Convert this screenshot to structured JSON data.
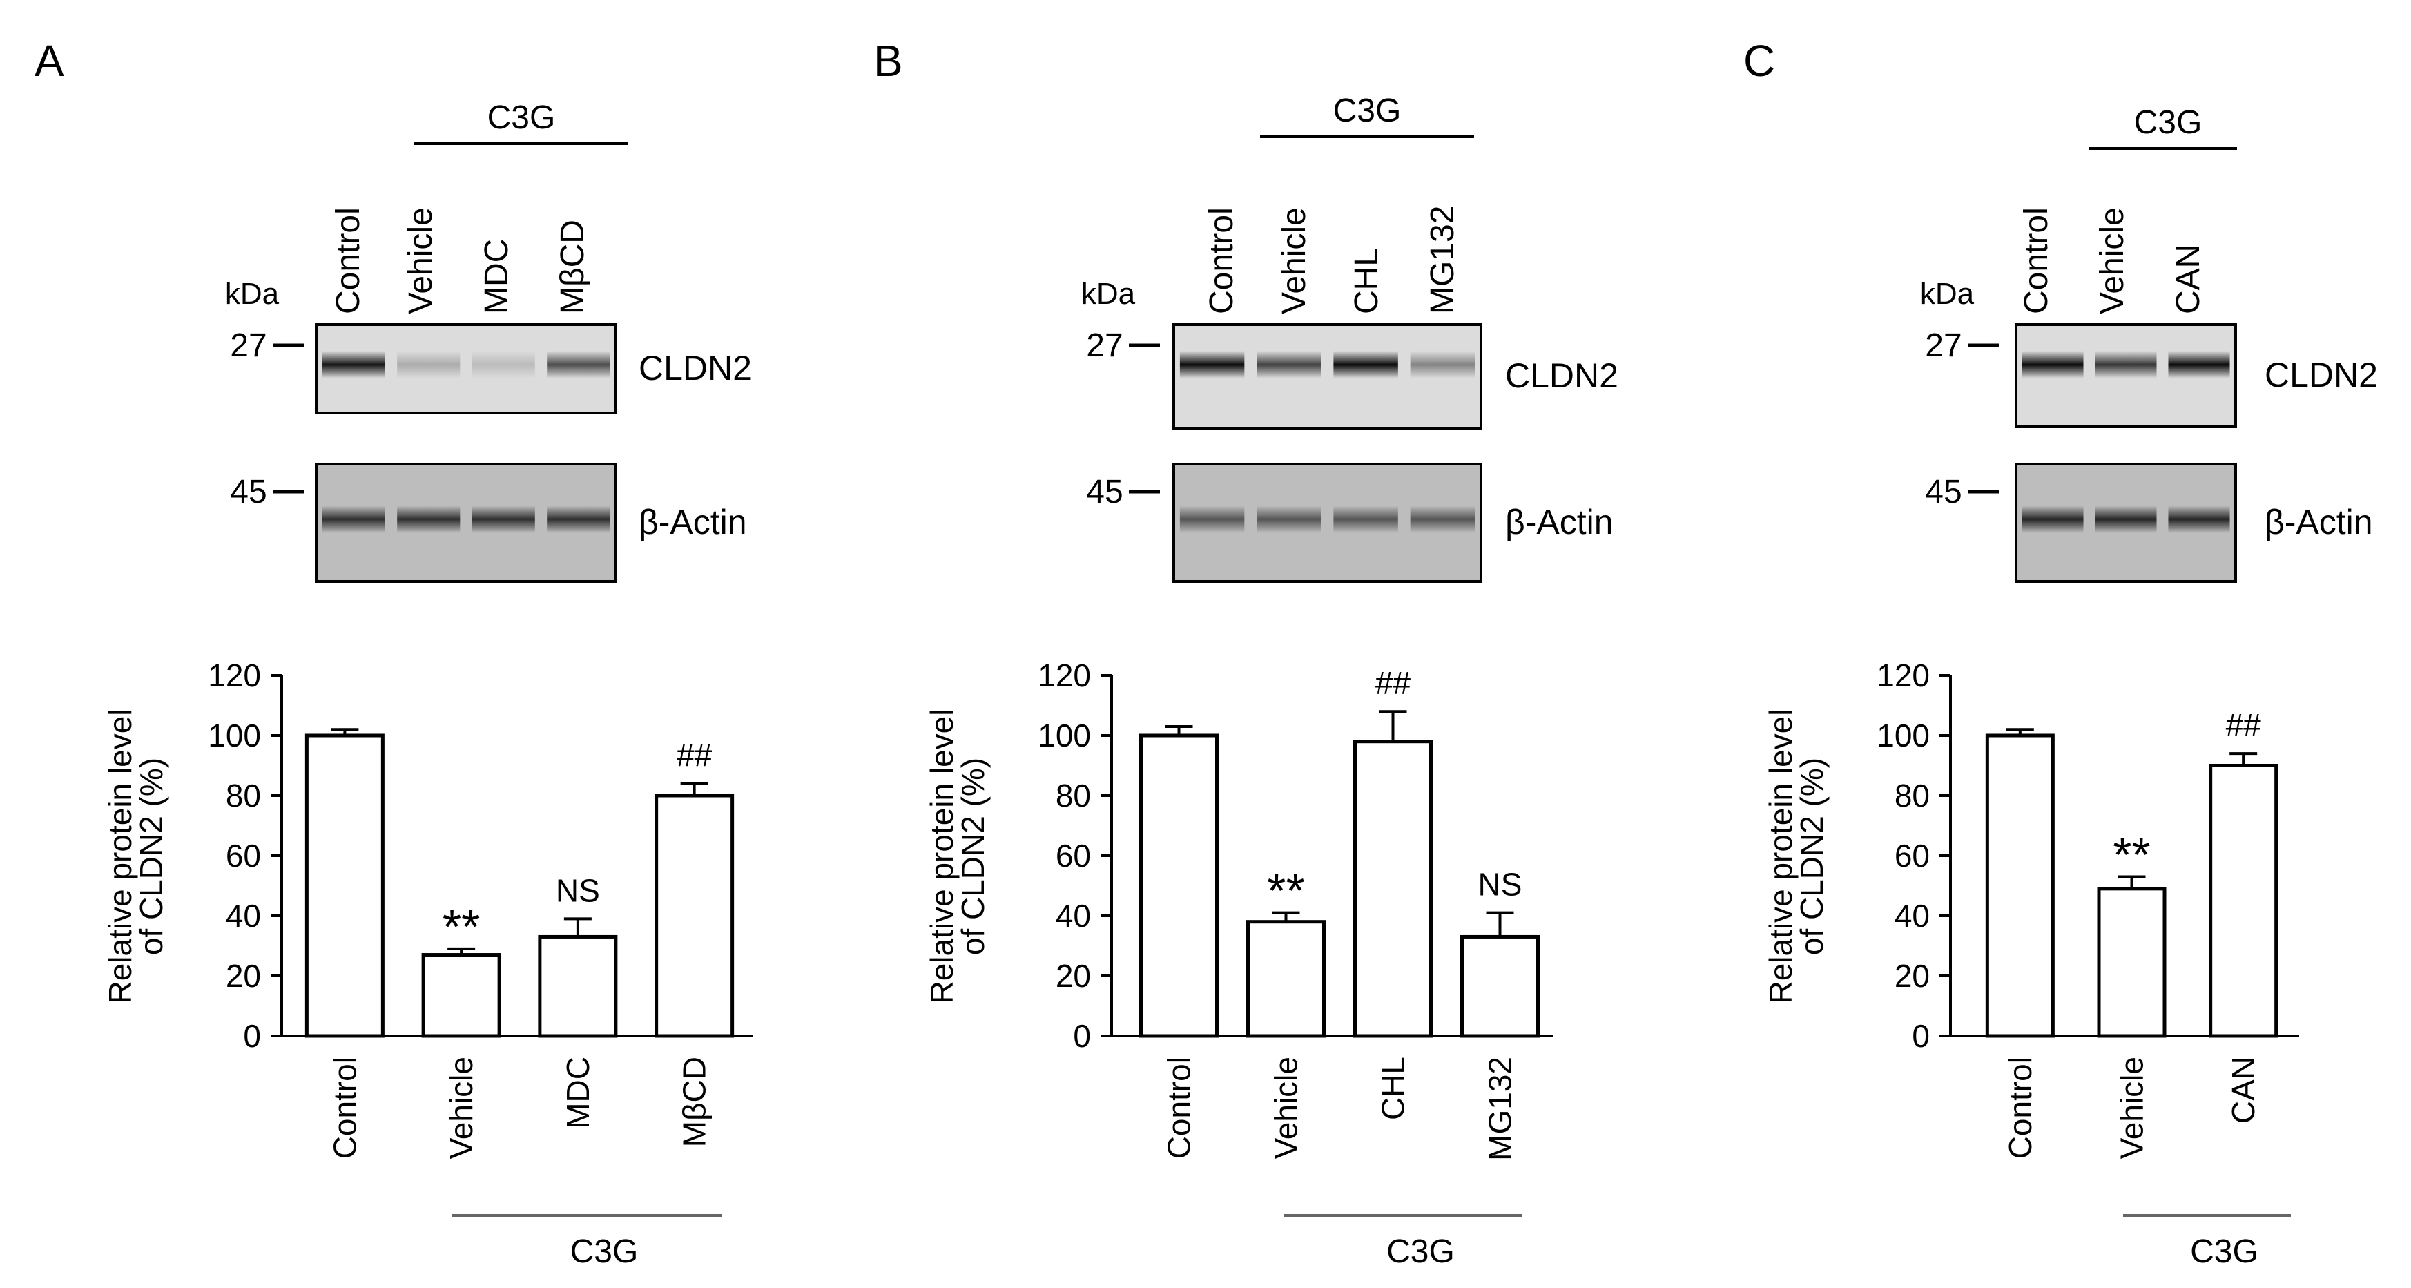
{
  "panels": [
    {
      "letter": "A",
      "treatment_label": "C3G",
      "lanes": [
        "Control",
        "Vehicle",
        "MDC",
        "MβCD"
      ],
      "kda_label": "kDa",
      "markers": [
        "27",
        "45"
      ],
      "blots": [
        {
          "label": "CLDN2",
          "band_intensity": [
            0.9,
            0.22,
            0.15,
            0.65
          ]
        },
        {
          "label": "β-Actin",
          "band_intensity": [
            0.75,
            0.75,
            0.75,
            0.75
          ]
        }
      ]
    },
    {
      "letter": "B",
      "treatment_label": "C3G",
      "lanes": [
        "Control",
        "Vehicle",
        "CHL",
        "MG132"
      ],
      "kda_label": "kDa",
      "markers": [
        "27",
        "45"
      ],
      "blots": [
        {
          "label": "CLDN2",
          "band_intensity": [
            0.95,
            0.7,
            0.95,
            0.4
          ]
        },
        {
          "label": "β-Actin",
          "band_intensity": [
            0.55,
            0.55,
            0.55,
            0.55
          ]
        }
      ]
    },
    {
      "letter": "C",
      "treatment_label": "C3G",
      "lanes": [
        "Control",
        "Vehicle",
        "CAN"
      ],
      "kda_label": "kDa",
      "markers": [
        "27",
        "45"
      ],
      "blots": [
        {
          "label": "CLDN2",
          "band_intensity": [
            0.95,
            0.75,
            0.95
          ]
        },
        {
          "label": "β-Actin",
          "band_intensity": [
            0.8,
            0.8,
            0.8
          ]
        }
      ]
    }
  ],
  "chart_data": [
    {
      "type": "bar",
      "categories": [
        "Control",
        "Vehicle",
        "MDC",
        "MβCD"
      ],
      "values": [
        100,
        27,
        33,
        80
      ],
      "errors": [
        2,
        2,
        6,
        4
      ],
      "annotations": [
        "",
        "**",
        "NS",
        "##"
      ],
      "ylabel": "Relative protein level\nof CLDN2 (%)",
      "ylim": [
        0,
        120
      ],
      "yticks": [
        0,
        20,
        40,
        60,
        80,
        100,
        120
      ],
      "group_label": "C3G",
      "group_categories": [
        "Vehicle",
        "MDC",
        "MβCD"
      ]
    },
    {
      "type": "bar",
      "categories": [
        "Control",
        "Vehicle",
        "CHL",
        "MG132"
      ],
      "values": [
        100,
        38,
        98,
        33
      ],
      "errors": [
        3,
        3,
        10,
        8
      ],
      "annotations": [
        "",
        "**",
        "##",
        "NS"
      ],
      "ylabel": "Relative protein level\nof CLDN2 (%)",
      "ylim": [
        0,
        120
      ],
      "yticks": [
        0,
        20,
        40,
        60,
        80,
        100,
        120
      ],
      "group_label": "C3G",
      "group_categories": [
        "Vehicle",
        "CHL",
        "MG132"
      ]
    },
    {
      "type": "bar",
      "categories": [
        "Control",
        "Vehicle",
        "CAN"
      ],
      "values": [
        100,
        49,
        90
      ],
      "errors": [
        2,
        4,
        4
      ],
      "annotations": [
        "",
        "**",
        "##"
      ],
      "ylabel": "Relative protein level\nof CLDN2 (%)",
      "ylim": [
        0,
        120
      ],
      "yticks": [
        0,
        20,
        40,
        60,
        80,
        100,
        120
      ],
      "group_label": "C3G",
      "group_categories": [
        "Vehicle",
        "CAN"
      ]
    }
  ]
}
